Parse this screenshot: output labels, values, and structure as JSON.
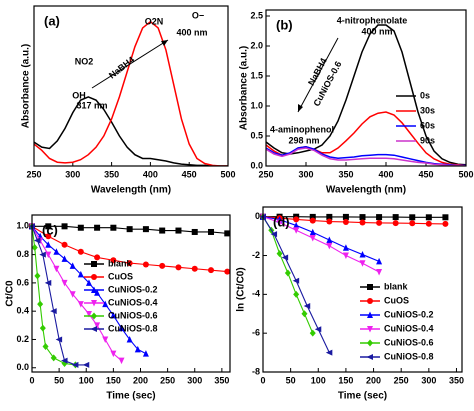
{
  "chart_data": [
    {
      "type": "line",
      "label": "(a)",
      "xlabel": "Wavelength (nm)",
      "ylabel": "Absorbance (a.u.)",
      "annotations": [
        "317 nm",
        "400 nm",
        "NaBH4",
        "NO2",
        "OH",
        "O2N",
        "O−"
      ],
      "xlim": [
        250,
        500
      ],
      "xticks": [
        250,
        300,
        350,
        400,
        450,
        500
      ],
      "ylim": [
        0,
        2.55
      ],
      "yticks": [],
      "x": [
        250,
        260,
        270,
        280,
        290,
        300,
        310,
        320,
        330,
        340,
        350,
        360,
        370,
        380,
        390,
        400,
        410,
        420,
        430,
        440,
        450,
        460,
        470,
        480,
        490,
        500
      ],
      "series": [
        {
          "color": "#000000",
          "values": [
            0.38,
            0.3,
            0.28,
            0.4,
            0.6,
            0.85,
            1.05,
            1.1,
            1.05,
            0.9,
            0.7,
            0.48,
            0.3,
            0.18,
            0.12,
            0.12,
            0.1,
            0.08,
            0.05,
            0.03,
            0.02,
            0.01,
            0.01,
            0,
            0,
            0
          ]
        },
        {
          "color": "#ff0000",
          "values": [
            0.35,
            0.25,
            0.12,
            0.06,
            0.05,
            0.06,
            0.1,
            0.18,
            0.3,
            0.48,
            0.75,
            1.1,
            1.5,
            1.9,
            2.2,
            2.3,
            2.2,
            1.85,
            1.3,
            0.75,
            0.35,
            0.12,
            0.04,
            0.01,
            0,
            0
          ]
        }
      ]
    },
    {
      "type": "line",
      "label": "(b)",
      "xlabel": "Wavelength (nm)",
      "ylabel": "Absorbance (a.u.)",
      "annotations": [
        "4-nitrophenolate",
        "400 nm",
        "NaBH4",
        "CuNiOS-0.6",
        "4-aminophenol",
        "298 nm"
      ],
      "legend": "upper right",
      "xlim": [
        250,
        500
      ],
      "xticks": [
        250,
        300,
        350,
        400,
        450,
        500
      ],
      "ylim": [
        0,
        2.6
      ],
      "yticks": [
        {
          "value": 0,
          "label": "0.0"
        },
        {
          "value": 0.5,
          "label": "0.5"
        },
        {
          "value": 1,
          "label": "1.0"
        },
        {
          "value": 1.5,
          "label": "1.5"
        },
        {
          "value": 2,
          "label": "2.0"
        },
        {
          "value": 2.5,
          "label": "2.5"
        }
      ],
      "x": [
        250,
        260,
        270,
        280,
        290,
        300,
        310,
        320,
        330,
        340,
        350,
        360,
        370,
        380,
        390,
        400,
        410,
        420,
        430,
        440,
        450,
        460,
        470,
        480,
        490,
        500
      ],
      "series": [
        {
          "name": "0s",
          "color": "#000000",
          "values": [
            0.4,
            0.3,
            0.22,
            0.2,
            0.22,
            0.25,
            0.28,
            0.35,
            0.5,
            0.75,
            1.1,
            1.5,
            1.9,
            2.2,
            2.35,
            2.35,
            2.25,
            1.9,
            1.4,
            0.9,
            0.5,
            0.25,
            0.12,
            0.06,
            0.03,
            0.02
          ]
        },
        {
          "name": "30s",
          "color": "#ff0000",
          "values": [
            0.35,
            0.25,
            0.18,
            0.2,
            0.3,
            0.32,
            0.28,
            0.22,
            0.22,
            0.3,
            0.42,
            0.55,
            0.7,
            0.82,
            0.88,
            0.9,
            0.85,
            0.72,
            0.55,
            0.38,
            0.22,
            0.12,
            0.06,
            0.03,
            0.02,
            0.01
          ]
        },
        {
          "name": "60s",
          "color": "#0000ff",
          "values": [
            0.3,
            0.22,
            0.18,
            0.22,
            0.3,
            0.32,
            0.28,
            0.2,
            0.15,
            0.13,
            0.14,
            0.15,
            0.17,
            0.18,
            0.19,
            0.19,
            0.18,
            0.15,
            0.12,
            0.09,
            0.06,
            0.04,
            0.03,
            0.02,
            0.01,
            0.01
          ]
        },
        {
          "name": "90s",
          "color": "#cc33cc",
          "values": [
            0.28,
            0.2,
            0.16,
            0.2,
            0.28,
            0.3,
            0.26,
            0.18,
            0.12,
            0.1,
            0.1,
            0.11,
            0.12,
            0.13,
            0.13,
            0.13,
            0.12,
            0.1,
            0.08,
            0.06,
            0.05,
            0.03,
            0.02,
            0.01,
            0.01,
            0
          ]
        }
      ]
    },
    {
      "type": "line",
      "label": "(c)",
      "xlabel": "Time (sec)",
      "ylabel": "Ct/C0",
      "legend": "center left",
      "xlim": [
        0,
        365
      ],
      "xticks": [
        0,
        50,
        100,
        150,
        200,
        250,
        300,
        350
      ],
      "ylim": [
        -0.03,
        1.08
      ],
      "yticks": [
        {
          "value": 0,
          "label": "0.0"
        },
        {
          "value": 0.2,
          "label": "0.2"
        },
        {
          "value": 0.4,
          "label": "0.4"
        },
        {
          "value": 0.6,
          "label": "0.6"
        },
        {
          "value": 0.8,
          "label": "0.8"
        },
        {
          "value": 1,
          "label": "1.0"
        }
      ],
      "series": [
        {
          "name": "blank",
          "color": "#000000",
          "marker": "square",
          "x": [
            0,
            30,
            60,
            90,
            120,
            150,
            180,
            210,
            240,
            270,
            300,
            330,
            360
          ],
          "values": [
            1,
            1,
            1,
            0.99,
            0.99,
            0.99,
            0.98,
            0.98,
            0.97,
            0.97,
            0.96,
            0.96,
            0.95
          ]
        },
        {
          "name": "CuOS",
          "color": "#ff0000",
          "marker": "circle",
          "x": [
            0,
            30,
            60,
            90,
            120,
            150,
            180,
            210,
            240,
            270,
            300,
            330,
            360
          ],
          "values": [
            1,
            0.93,
            0.87,
            0.82,
            0.78,
            0.76,
            0.74,
            0.73,
            0.72,
            0.71,
            0.7,
            0.69,
            0.68
          ]
        },
        {
          "name": "CuNiOS-0.2",
          "color": "#0000ff",
          "marker": "up",
          "x": [
            0,
            15,
            30,
            45,
            60,
            75,
            90,
            105,
            120,
            135,
            150,
            165,
            180,
            195,
            210
          ],
          "values": [
            1,
            0.93,
            0.87,
            0.82,
            0.77,
            0.72,
            0.66,
            0.6,
            0.53,
            0.45,
            0.37,
            0.28,
            0.2,
            0.13,
            0.1
          ]
        },
        {
          "name": "CuNiOS-0.4",
          "color": "#ee22ee",
          "marker": "down",
          "x": [
            0,
            15,
            30,
            45,
            60,
            75,
            90,
            105,
            120,
            135,
            150,
            165
          ],
          "values": [
            1,
            0.9,
            0.8,
            0.7,
            0.6,
            0.52,
            0.45,
            0.38,
            0.3,
            0.2,
            0.1,
            0.05
          ]
        },
        {
          "name": "CuNiOS-0.6",
          "color": "#33cc00",
          "marker": "diamond",
          "x": [
            0,
            5,
            10,
            15,
            20,
            25,
            40,
            60,
            80
          ],
          "values": [
            1,
            0.85,
            0.65,
            0.45,
            0.28,
            0.15,
            0.07,
            0.03,
            0.02
          ]
        },
        {
          "name": "CuNiOS-0.8",
          "color": "#1a1aa0",
          "marker": "left",
          "x": [
            0,
            10,
            20,
            30,
            40,
            50,
            60,
            80,
            100
          ],
          "values": [
            1,
            0.9,
            0.8,
            0.6,
            0.4,
            0.2,
            0.05,
            0.02,
            0.02
          ]
        }
      ]
    },
    {
      "type": "line",
      "label": "(d)",
      "xlabel": "Time (sec)",
      "ylabel": "ln (Ct/C0)",
      "legend": "center right",
      "xlim": [
        0,
        360
      ],
      "xticks": [
        0,
        50,
        100,
        150,
        200,
        250,
        300,
        350
      ],
      "ylim": [
        -8,
        0.5
      ],
      "yticks": [
        0,
        -2,
        -4,
        -6,
        -8
      ],
      "series": [
        {
          "name": "blank",
          "color": "#000000",
          "marker": "square",
          "x": [
            0,
            30,
            60,
            90,
            120,
            150,
            180,
            210,
            240,
            270,
            300,
            330
          ],
          "values": [
            0,
            0,
            0,
            -0.01,
            -0.01,
            -0.01,
            -0.02,
            -0.02,
            -0.02,
            -0.03,
            -0.03,
            -0.03
          ]
        },
        {
          "name": "CuOS",
          "color": "#ff0000",
          "marker": "circle",
          "x": [
            0,
            30,
            60,
            90,
            120,
            150,
            180,
            210,
            240,
            270,
            300,
            330
          ],
          "values": [
            0,
            -0.07,
            -0.14,
            -0.2,
            -0.25,
            -0.27,
            -0.3,
            -0.32,
            -0.33,
            -0.34,
            -0.36,
            -0.37
          ]
        },
        {
          "name": "CuNiOS-0.2",
          "color": "#0000ff",
          "marker": "up",
          "x": [
            0,
            30,
            60,
            90,
            120,
            150,
            180,
            210
          ],
          "values": [
            0,
            -0.15,
            -0.45,
            -0.8,
            -1.2,
            -1.6,
            -1.95,
            -2.3
          ]
        },
        {
          "name": "CuNiOS-0.4",
          "color": "#ee22ee",
          "marker": "down",
          "x": [
            0,
            30,
            60,
            90,
            120,
            150,
            180,
            210
          ],
          "values": [
            0,
            -0.3,
            -0.7,
            -1.1,
            -1.5,
            -2,
            -2.4,
            -2.85
          ]
        },
        {
          "name": "CuNiOS-0.6",
          "color": "#33cc00",
          "marker": "diamond",
          "x": [
            0,
            15,
            30,
            45,
            60,
            75,
            90
          ],
          "values": [
            0,
            -0.7,
            -1.9,
            -2.9,
            -4,
            -5,
            -6
          ]
        },
        {
          "name": "CuNiOS-0.8",
          "color": "#1a1aa0",
          "marker": "left",
          "x": [
            0,
            20,
            40,
            60,
            80,
            100,
            120
          ],
          "values": [
            0,
            -0.9,
            -2.1,
            -3.3,
            -4.6,
            -5.8,
            -7
          ]
        }
      ]
    }
  ]
}
